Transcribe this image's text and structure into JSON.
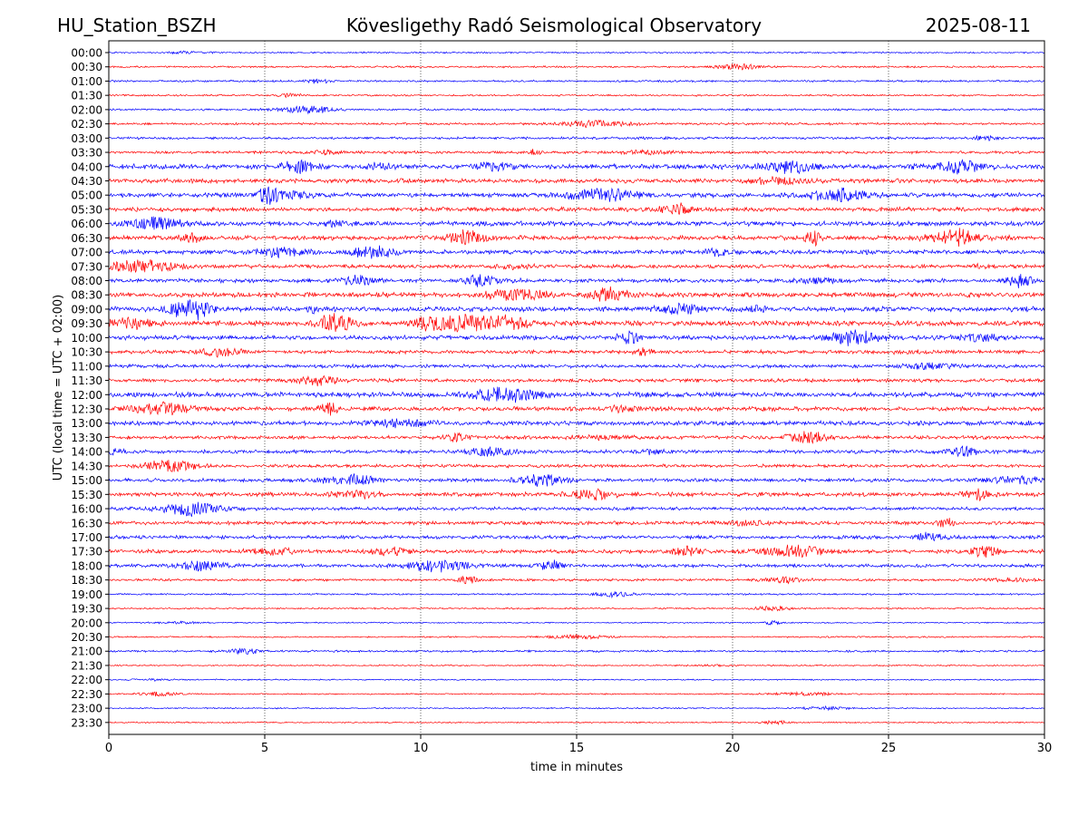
{
  "header": {
    "station": "HU_Station_BSZH",
    "observatory": "Kövesligethy Radó Seismological Observatory",
    "date": "2025-08-11"
  },
  "chart_data": {
    "type": "line",
    "title": "Kövesligethy Radó Seismological Observatory",
    "xlabel": "time in minutes",
    "ylabel": "UTC (local time = UTC + 02:00)",
    "xlim": [
      0,
      30
    ],
    "xticks": [
      0,
      5,
      10,
      15,
      20,
      25,
      30
    ],
    "grid": "vertical dotted lines at each x tick",
    "legend": "none",
    "trace_colors": [
      "#0000ff",
      "#ff0000"
    ],
    "rows": [
      {
        "label": "00:00",
        "level": 0.35
      },
      {
        "label": "00:30",
        "level": 0.4
      },
      {
        "label": "01:00",
        "level": 0.45
      },
      {
        "label": "01:30",
        "level": 0.4
      },
      {
        "label": "02:00",
        "level": 0.45
      },
      {
        "label": "02:30",
        "level": 0.5
      },
      {
        "label": "03:00",
        "level": 0.55
      },
      {
        "label": "03:30",
        "level": 0.6
      },
      {
        "label": "04:00",
        "level": 1.1
      },
      {
        "label": "04:30",
        "level": 1.0
      },
      {
        "label": "05:00",
        "level": 1.0
      },
      {
        "label": "05:30",
        "level": 0.95
      },
      {
        "label": "06:00",
        "level": 1.05
      },
      {
        "label": "06:30",
        "level": 1.0
      },
      {
        "label": "07:00",
        "level": 0.95
      },
      {
        "label": "07:30",
        "level": 0.85
      },
      {
        "label": "08:00",
        "level": 0.9
      },
      {
        "label": "08:30",
        "level": 1.1
      },
      {
        "label": "09:00",
        "level": 1.1
      },
      {
        "label": "09:30",
        "level": 1.15
      },
      {
        "label": "10:00",
        "level": 1.0
      },
      {
        "label": "10:30",
        "level": 0.8
      },
      {
        "label": "11:00",
        "level": 0.8
      },
      {
        "label": "11:30",
        "level": 0.8
      },
      {
        "label": "12:00",
        "level": 1.1
      },
      {
        "label": "12:30",
        "level": 0.95
      },
      {
        "label": "13:00",
        "level": 1.0
      },
      {
        "label": "13:30",
        "level": 0.8
      },
      {
        "label": "14:00",
        "level": 0.8
      },
      {
        "label": "14:30",
        "level": 0.75
      },
      {
        "label": "15:00",
        "level": 0.8
      },
      {
        "label": "15:30",
        "level": 0.95
      },
      {
        "label": "16:00",
        "level": 0.75
      },
      {
        "label": "16:30",
        "level": 0.8
      },
      {
        "label": "17:00",
        "level": 0.8
      },
      {
        "label": "17:30",
        "level": 0.85
      },
      {
        "label": "18:00",
        "level": 0.75
      },
      {
        "label": "18:30",
        "level": 0.55
      },
      {
        "label": "19:00",
        "level": 0.4
      },
      {
        "label": "19:30",
        "level": 0.35
      },
      {
        "label": "20:00",
        "level": 0.3
      },
      {
        "label": "20:30",
        "level": 0.35
      },
      {
        "label": "21:00",
        "level": 0.45
      },
      {
        "label": "21:30",
        "level": 0.3
      },
      {
        "label": "22:00",
        "level": 0.3
      },
      {
        "label": "22:30",
        "level": 0.3
      },
      {
        "label": "23:00",
        "level": 0.3
      },
      {
        "label": "23:30",
        "level": 0.3
      }
    ]
  }
}
